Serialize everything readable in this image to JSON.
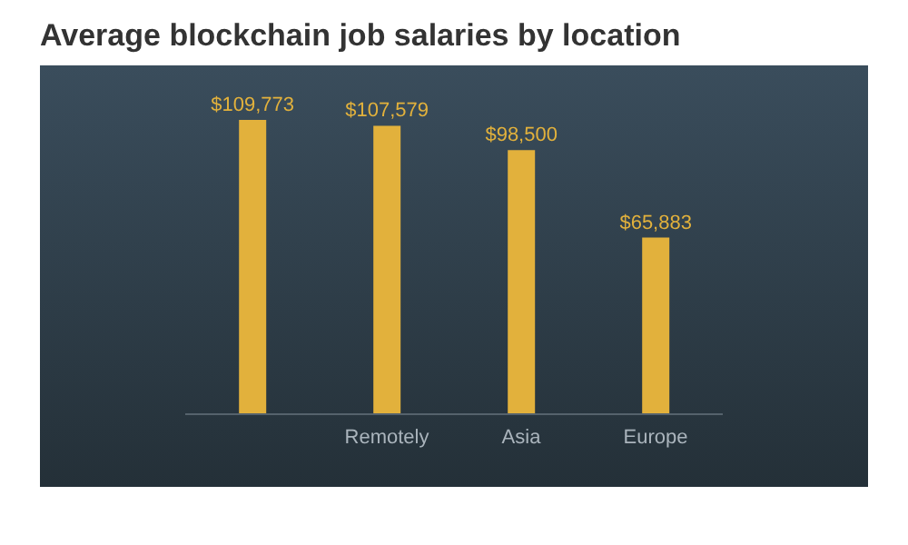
{
  "chart_data": {
    "type": "bar",
    "title": "Average blockchain job salaries by location",
    "categories": [
      null,
      "Remotely",
      "Asia",
      "Europe"
    ],
    "values": [
      109773,
      107579,
      98500,
      65883
    ],
    "value_labels": [
      "$109,773",
      "$107,579",
      "$98,500",
      "$65,883"
    ],
    "color": "#e2b13c"
  }
}
